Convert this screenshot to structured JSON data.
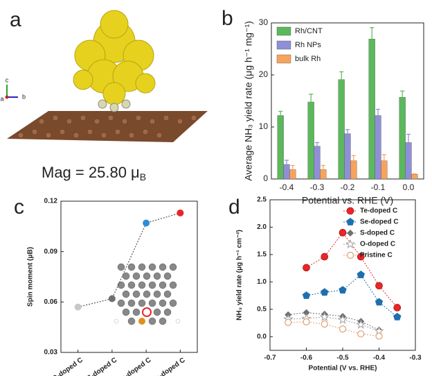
{
  "panel_labels": [
    "a",
    "b",
    "c",
    "d"
  ],
  "panel_a": {
    "caption": "Mag = 25.80 μ",
    "caption_sub": "B",
    "axes": [
      "c",
      "a",
      "b"
    ]
  },
  "chart_data": [
    {
      "type": "bar",
      "ylabel": "Average NH₃ yield rate (μg h⁻¹ mg⁻¹)",
      "xlabel": "Potential vs. RHE (V)",
      "categories": [
        "-0.4",
        "-0.3",
        "-0.2",
        "-0.1",
        "0.0"
      ],
      "series": [
        {
          "name": "Rh/CNT",
          "color": "#5cb85c",
          "values": [
            12.2,
            14.8,
            19.1,
            26.9,
            15.7
          ],
          "errors": [
            0.8,
            1.5,
            1.5,
            2.2,
            1.2
          ]
        },
        {
          "name": "Rh NPs",
          "color": "#8f8fd8",
          "values": [
            2.8,
            6.3,
            8.7,
            12.2,
            7.0
          ],
          "errors": [
            0.8,
            0.7,
            0.8,
            1.2,
            1.6
          ]
        },
        {
          "name": "bulk Rh",
          "color": "#f7a35c",
          "values": [
            1.8,
            1.8,
            3.5,
            3.5,
            0.9
          ],
          "errors": [
            0.8,
            0.8,
            1.0,
            1.2,
            0.1
          ]
        }
      ],
      "ylim": [
        0,
        30
      ],
      "yticks": [
        0,
        10,
        20,
        30
      ],
      "legend": "upper left"
    },
    {
      "type": "line",
      "ylabel": "Spin moment (μB)",
      "categories": [
        "O-doped C",
        "S-doped C",
        "Se-doped C",
        "Te-doped C"
      ],
      "values": [
        0.057,
        0.062,
        0.107,
        0.113
      ],
      "colors": [
        "#c8c8c8",
        "#707070",
        "#2a8fd6",
        "#e8262a"
      ],
      "color": "#555555",
      "ylim": [
        0.03,
        0.12
      ],
      "yticks": [
        0.03,
        0.06,
        0.09,
        0.12
      ]
    },
    {
      "type": "line",
      "ylabel": "NH₃ yield rate (μg h⁻¹ cm⁻²)",
      "xlabel": "Potential (V vs. RHE)",
      "series": [
        {
          "name": "Te-doped C",
          "color": "#e8262a",
          "marker": "circle",
          "x": [
            -0.6,
            -0.55,
            -0.5,
            -0.45,
            -0.4,
            -0.35
          ],
          "values": [
            1.26,
            1.46,
            1.9,
            1.46,
            0.93,
            0.53
          ]
        },
        {
          "name": "Se-doped C",
          "color": "#1f6fb0",
          "marker": "pentagon",
          "x": [
            -0.6,
            -0.55,
            -0.5,
            -0.45,
            -0.4,
            -0.35
          ],
          "values": [
            0.75,
            0.81,
            0.85,
            1.13,
            0.63,
            0.36
          ]
        },
        {
          "name": "S-doped C",
          "color": "#707070",
          "marker": "diamond",
          "x": [
            -0.65,
            -0.6,
            -0.55,
            -0.5,
            -0.45,
            -0.4
          ],
          "values": [
            0.4,
            0.44,
            0.41,
            0.37,
            0.28,
            0.12
          ]
        },
        {
          "name": "O-doped C",
          "color": "#a0a0a0",
          "marker": "star",
          "x": [
            -0.65,
            -0.6,
            -0.55,
            -0.5,
            -0.45,
            -0.4
          ],
          "values": [
            0.32,
            0.33,
            0.36,
            0.31,
            0.22,
            0.1
          ]
        },
        {
          "name": "Pristine C",
          "color": "#e0a070",
          "marker": "hollow",
          "x": [
            -0.65,
            -0.6,
            -0.55,
            -0.5,
            -0.45,
            -0.4
          ],
          "values": [
            0.26,
            0.27,
            0.23,
            0.14,
            0.05,
            0.01
          ]
        }
      ],
      "xlim": [
        -0.7,
        -0.3
      ],
      "xticks": [
        -0.7,
        -0.6,
        -0.5,
        -0.4,
        -0.3
      ],
      "ylim": [
        -0.25,
        2.5
      ],
      "yticks": [
        {
          "value": 0,
          "label": "0.0"
        },
        0.5,
        {
          "value": 1,
          "label": "1.0"
        },
        1.5,
        {
          "value": 2,
          "label": "2.0"
        },
        2.5
      ],
      "legend": "upper right"
    }
  ]
}
